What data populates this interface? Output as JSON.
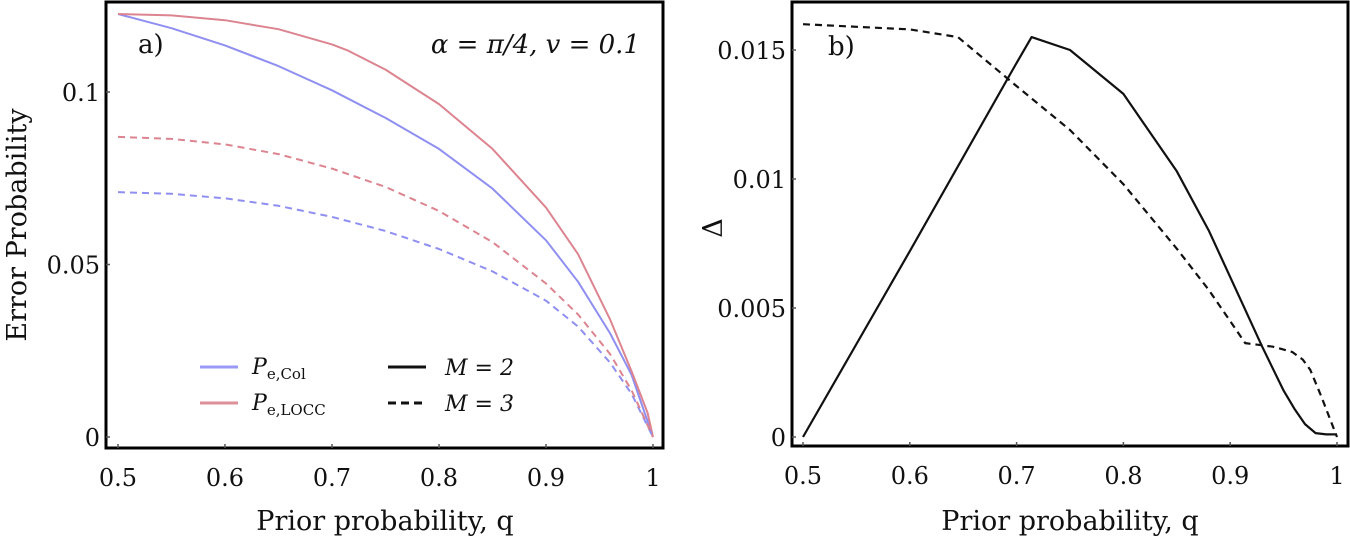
{
  "chart_data": [
    {
      "panel": "a)",
      "type": "line",
      "title": "",
      "annotation": "α = π/4, v = 0.1",
      "xlabel": "Prior probability, q",
      "ylabel": "Error Probability",
      "xlim": [
        0.5,
        1.0
      ],
      "ylim": [
        0,
        0.1226
      ],
      "xticks": [
        "0.5",
        "0.6",
        "0.7",
        "0.8",
        "0.9",
        "1"
      ],
      "yticks": [
        "0",
        "0.05",
        "0.1"
      ],
      "grid": false,
      "legend": {
        "position": "lower-center",
        "entries": [
          {
            "label": "P",
            "sub": "e,Col",
            "color": "#9a9af5",
            "style": "solid"
          },
          {
            "label": "P",
            "sub": "e,LOCC",
            "color": "#de8f9a",
            "style": "solid"
          },
          {
            "label": "M = 2",
            "color": "#111111",
            "style": "solid"
          },
          {
            "label": "M = 3",
            "color": "#111111",
            "style": "dashed"
          }
        ]
      },
      "series": [
        {
          "name": "P_e,Col (M=2)",
          "color": "#8f8ff2",
          "style": "solid",
          "x": [
            0.5,
            0.55,
            0.6,
            0.65,
            0.7,
            0.75,
            0.8,
            0.85,
            0.9,
            0.93,
            0.96,
            0.98,
            1.0
          ],
          "y": [
            0.1226,
            0.1185,
            0.1135,
            0.1075,
            0.1005,
            0.0925,
            0.0835,
            0.072,
            0.057,
            0.045,
            0.03,
            0.018,
            0.0
          ]
        },
        {
          "name": "P_e,LOCC (M=2)",
          "color": "#dc8490",
          "style": "solid",
          "x": [
            0.5,
            0.55,
            0.6,
            0.65,
            0.7,
            0.715,
            0.75,
            0.8,
            0.85,
            0.9,
            0.93,
            0.96,
            0.98,
            0.995,
            1.0
          ],
          "y": [
            0.1226,
            0.1222,
            0.1208,
            0.1182,
            0.1138,
            0.112,
            0.1065,
            0.0965,
            0.0835,
            0.0665,
            0.053,
            0.034,
            0.019,
            0.007,
            0.0
          ]
        },
        {
          "name": "P_e,Col (M=3)",
          "color": "#8f8ff2",
          "style": "dashed",
          "x": [
            0.5,
            0.55,
            0.6,
            0.65,
            0.7,
            0.75,
            0.8,
            0.85,
            0.9,
            0.93,
            0.96,
            0.98,
            1.0
          ],
          "y": [
            0.071,
            0.0705,
            0.0692,
            0.067,
            0.0638,
            0.0597,
            0.0545,
            0.048,
            0.0395,
            0.032,
            0.0215,
            0.0125,
            0.0
          ]
        },
        {
          "name": "P_e,LOCC (M=3)",
          "color": "#dc8490",
          "style": "dashed",
          "x": [
            0.5,
            0.55,
            0.6,
            0.65,
            0.7,
            0.75,
            0.8,
            0.85,
            0.9,
            0.93,
            0.96,
            0.98,
            1.0
          ],
          "y": [
            0.087,
            0.0864,
            0.0848,
            0.082,
            0.0778,
            0.0725,
            0.0655,
            0.0565,
            0.0445,
            0.0355,
            0.024,
            0.0135,
            0.0
          ]
        }
      ]
    },
    {
      "panel": "b)",
      "type": "line",
      "title": "",
      "xlabel": "Prior probability, q",
      "ylabel": "Δ",
      "xlim": [
        0.5,
        1.0
      ],
      "ylim": [
        0,
        0.0169
      ],
      "xticks": [
        "0.5",
        "0.6",
        "0.7",
        "0.8",
        "0.9",
        "1"
      ],
      "yticks": [
        "0",
        "0.005",
        "0.01",
        "0.015"
      ],
      "grid": false,
      "series": [
        {
          "name": "M = 2",
          "color": "#111111",
          "style": "solid",
          "x": [
            0.5,
            0.6,
            0.7,
            0.714,
            0.75,
            0.8,
            0.85,
            0.88,
            0.91,
            0.93,
            0.95,
            0.96,
            0.97,
            0.98,
            0.99,
            1.0
          ],
          "y": [
            0.0,
            0.0072,
            0.0145,
            0.0155,
            0.015,
            0.0133,
            0.0103,
            0.008,
            0.0053,
            0.0035,
            0.0018,
            0.0011,
            0.0005,
            0.00015,
            0.0001,
            0.0001
          ]
        },
        {
          "name": "M = 3",
          "color": "#111111",
          "style": "dashed",
          "x": [
            0.5,
            0.55,
            0.6,
            0.645,
            0.7,
            0.75,
            0.8,
            0.85,
            0.88,
            0.914,
            0.94,
            0.958,
            0.968,
            0.975,
            0.985,
            1.0
          ],
          "y": [
            0.016,
            0.0159,
            0.0158,
            0.0155,
            0.0136,
            0.0119,
            0.0098,
            0.0073,
            0.0057,
            0.00364,
            0.0035,
            0.0033,
            0.003,
            0.0026,
            0.0016,
            0.0
          ]
        }
      ]
    }
  ]
}
